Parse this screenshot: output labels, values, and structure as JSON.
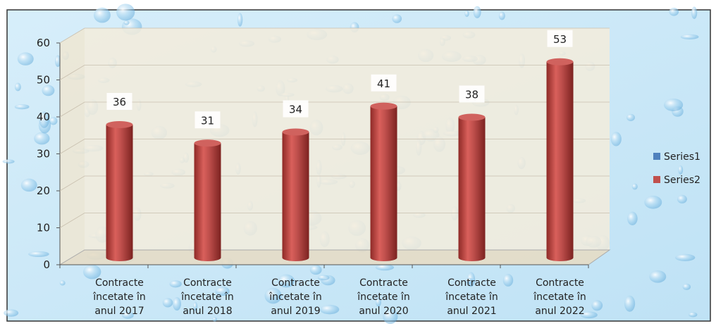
{
  "chart_data": {
    "type": "bar",
    "categories": [
      "Contracte încetate în anul 2017",
      "Contracte încetate în anul 2018",
      "Contracte încetate în anul 2019",
      "Contracte încetate în anul 2020",
      "Contracte încetate în anul 2021",
      "Contracte încetate în anul 2022"
    ],
    "series": [
      {
        "name": "Series1",
        "color": "#4f81bd",
        "values": [
          null,
          null,
          null,
          null,
          null,
          null
        ]
      },
      {
        "name": "Series2",
        "color": "#c0504d",
        "values": [
          36,
          31,
          34,
          41,
          38,
          53
        ]
      }
    ],
    "ylim": [
      0,
      60
    ],
    "yticks": [
      0,
      10,
      20,
      30,
      40,
      50,
      60
    ],
    "grid": true,
    "legend": "right"
  }
}
